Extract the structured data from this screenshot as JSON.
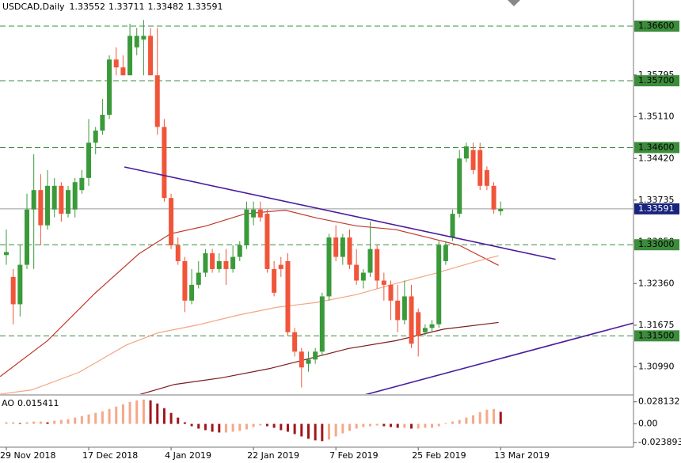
{
  "chart_data": {
    "type": "candlestick",
    "title": "USDCAD,Daily",
    "categories": [
      "29 Nov 2018",
      null,
      null,
      null,
      null,
      null,
      null,
      null,
      null,
      null,
      null,
      null,
      "17 Dec 2018",
      null,
      null,
      null,
      null,
      null,
      null,
      null,
      null,
      null,
      null,
      null,
      "4 Jan 2019",
      null,
      null,
      null,
      null,
      null,
      null,
      null,
      null,
      null,
      null,
      null,
      "22 Jan 2019",
      null,
      null,
      null,
      null,
      null,
      null,
      null,
      null,
      null,
      null,
      null,
      "7 Feb 2019",
      null,
      null,
      null,
      null,
      null,
      null,
      null,
      null,
      null,
      null,
      null,
      "25 Feb 2019",
      null,
      null,
      null,
      null,
      null,
      null,
      null,
      null,
      null,
      null,
      null,
      "13 Mar 2019"
    ],
    "open": [
      1.3283,
      1.3247,
      1.3202,
      1.3267,
      1.3358,
      1.339,
      1.3332,
      1.3358,
      1.3397,
      1.3351,
      1.3358,
      1.339,
      1.341,
      1.3468,
      1.3488,
      1.3514,
      1.3605,
      1.3592,
      1.3579,
      1.3625,
      1.3638,
      1.3644,
      1.3579,
      1.3494,
      1.3377,
      1.3299,
      1.3273,
      1.3208,
      1.3234,
      1.3254,
      1.3286,
      1.326,
      1.3273,
      1.326,
      1.328,
      1.3299,
      1.3345,
      1.3358,
      1.3351,
      1.326,
      1.3267,
      1.3273,
      1.3156,
      1.3124,
      1.3104,
      1.3111,
      1.3124,
      1.3215,
      1.3312,
      1.328,
      1.3312,
      1.3267,
      1.3241,
      1.3254,
      1.3293,
      1.3241,
      1.3234,
      1.3208,
      1.3176,
      1.3215,
      1.3189,
      1.3156,
      1.3163,
      1.3169,
      1.3273,
      1.3312,
      1.3351,
      1.3442,
      1.3456,
      1.3456,
      1.3423,
      1.3397,
      1.33552
    ],
    "high": [
      1.3325,
      1.326,
      1.3299,
      1.3384,
      1.3449,
      1.3416,
      1.3423,
      1.341,
      1.3403,
      1.3397,
      1.341,
      1.3423,
      1.3507,
      1.3494,
      1.354,
      1.3612,
      1.3625,
      1.3612,
      1.3664,
      1.3657,
      1.367,
      1.3657,
      1.3657,
      1.3507,
      1.3384,
      1.3312,
      1.328,
      1.326,
      1.3273,
      1.3293,
      1.3293,
      1.3286,
      1.3293,
      1.3299,
      1.3306,
      1.3371,
      1.3371,
      1.3371,
      1.3358,
      1.3273,
      1.328,
      1.3286,
      1.3163,
      1.313,
      1.3124,
      1.313,
      1.3221,
      1.3318,
      1.3332,
      1.3318,
      1.3325,
      1.3293,
      1.326,
      1.3338,
      1.3299,
      1.3254,
      1.3241,
      1.3234,
      1.3241,
      1.3234,
      1.3195,
      1.3169,
      1.3176,
      1.3306,
      1.3306,
      1.3358,
      1.3456,
      1.3468,
      1.3468,
      1.3468,
      1.3429,
      1.3403,
      1.33711
    ],
    "low": [
      1.3267,
      1.3169,
      1.3182,
      1.326,
      1.326,
      1.3299,
      1.3325,
      1.3345,
      1.3338,
      1.3345,
      1.3345,
      1.3384,
      1.3397,
      1.3449,
      1.3481,
      1.3507,
      1.3579,
      1.3579,
      1.3579,
      1.3612,
      1.3579,
      1.3579,
      1.3481,
      1.3371,
      1.3293,
      1.3267,
      1.3189,
      1.3202,
      1.3228,
      1.3247,
      1.3254,
      1.3254,
      1.3234,
      1.3254,
      1.3273,
      1.3293,
      1.3332,
      1.3338,
      1.3254,
      1.3215,
      1.3247,
      1.315,
      1.3116,
      1.3065,
      1.3091,
      1.3104,
      1.3117,
      1.3208,
      1.3273,
      1.3267,
      1.326,
      1.3234,
      1.3228,
      1.3247,
      1.3228,
      1.3208,
      1.3176,
      1.3156,
      1.3169,
      1.313,
      1.3116,
      1.315,
      1.3156,
      1.3163,
      1.3267,
      1.3306,
      1.3345,
      1.3436,
      1.3416,
      1.339,
      1.339,
      1.3351,
      1.33482
    ],
    "close": [
      1.3288,
      1.3202,
      1.3267,
      1.3358,
      1.339,
      1.3332,
      1.3397,
      1.3397,
      1.3351,
      1.339,
      1.3403,
      1.341,
      1.3468,
      1.3488,
      1.3514,
      1.3605,
      1.3592,
      1.3579,
      1.3644,
      1.3644,
      1.3644,
      1.3579,
      1.3494,
      1.3377,
      1.3299,
      1.3273,
      1.3208,
      1.3234,
      1.3254,
      1.3286,
      1.326,
      1.3273,
      1.326,
      1.328,
      1.3299,
      1.3358,
      1.3358,
      1.3345,
      1.326,
      1.3221,
      1.326,
      1.3156,
      1.3124,
      1.3098,
      1.3111,
      1.3124,
      1.3215,
      1.3312,
      1.328,
      1.3312,
      1.3267,
      1.3241,
      1.3254,
      1.3293,
      1.3241,
      1.3234,
      1.3208,
      1.3176,
      1.3215,
      1.3137,
      1.315,
      1.3163,
      1.3169,
      1.3299,
      1.3299,
      1.3351,
      1.3442,
      1.3462,
      1.3423,
      1.3397,
      1.3397,
      1.3358,
      1.33591
    ],
    "up_color": "#3a9a3a",
    "down_color": "#f0553a",
    "ylim": [
      1.3054,
      1.3703
    ],
    "yticks": [
      1.35795,
      {
        "value": 1.3511,
        "label": "1.35110"
      },
      {
        "value": 1.3442,
        "label": "1.34420"
      },
      1.33735,
      {
        "value": 1.3305,
        "label": "1.33050"
      },
      {
        "value": 1.3236,
        "label": "1.32360"
      },
      1.31675,
      {
        "value": 1.3099,
        "label": "1.30990"
      }
    ],
    "levels": [
      {
        "value": 1.366,
        "label": "1.36600"
      },
      {
        "value": 1.357,
        "label": "1.35700"
      },
      {
        "value": 1.346,
        "label": "1.34600"
      },
      {
        "value": 1.33,
        "label": "1.33000"
      },
      {
        "value": 1.315,
        "label": "1.31500"
      }
    ],
    "level_color": "#3c8c3c",
    "current_price": 1.33591,
    "current_price_color": "#1a237e",
    "overlays": [
      {
        "color": "#c0392b",
        "points": [
          [
            -0.9,
            1.3083
          ],
          [
            6.0,
            1.3142
          ],
          [
            12.9,
            1.322
          ],
          [
            19.3,
            1.3285
          ],
          [
            23.9,
            1.3318
          ],
          [
            29.1,
            1.3331
          ],
          [
            34.8,
            1.3351
          ],
          [
            40.6,
            1.3357
          ],
          [
            45.2,
            1.3344
          ],
          [
            51.0,
            1.3331
          ],
          [
            56.7,
            1.3325
          ],
          [
            61.4,
            1.3312
          ],
          [
            66.0,
            1.3299
          ],
          [
            71.7,
            1.3266
          ]
        ]
      },
      {
        "color": "#f4a582",
        "points": [
          [
            -0.9,
            1.3054
          ],
          [
            3.7,
            1.3061
          ],
          [
            10.6,
            1.309
          ],
          [
            17.5,
            1.3135
          ],
          [
            22.1,
            1.3155
          ],
          [
            27.9,
            1.3168
          ],
          [
            33.7,
            1.3184
          ],
          [
            39.4,
            1.3197
          ],
          [
            45.2,
            1.3205
          ],
          [
            51.0,
            1.3218
          ],
          [
            56.7,
            1.3236
          ],
          [
            62.5,
            1.3253
          ],
          [
            68.3,
            1.3272
          ],
          [
            71.7,
            1.3282
          ]
        ]
      },
      {
        "color": "#7b1b1b",
        "points": [
          [
            18.7,
            1.3051
          ],
          [
            24.5,
            1.307
          ],
          [
            31.4,
            1.3081
          ],
          [
            38.3,
            1.3096
          ],
          [
            42.9,
            1.3109
          ],
          [
            49.8,
            1.3129
          ],
          [
            56.7,
            1.3142
          ],
          [
            63.7,
            1.3161
          ],
          [
            71.7,
            1.3172
          ]
        ]
      }
    ],
    "trendlines": [
      {
        "color": "#4b1c9c",
        "points": [
          [
            17.2,
            1.3428
          ],
          [
            80.0,
            1.3276
          ]
        ]
      },
      {
        "color": "#4b1c9c",
        "points": [
          [
            51.6,
            1.3051
          ],
          [
            91.3,
            1.3171
          ]
        ]
      }
    ],
    "indicator": {
      "name": "AO",
      "values": [
        0.002,
        0.002,
        0.001,
        0.002,
        0.003,
        0.003,
        0.002,
        0.004,
        0.005,
        0.006,
        0.008,
        0.01,
        0.012,
        0.014,
        0.016,
        0.019,
        0.022,
        0.025,
        0.028,
        0.03,
        0.031,
        0.03,
        0.026,
        0.02,
        0.014,
        0.008,
        0.002,
        -0.003,
        -0.006,
        -0.008,
        -0.01,
        -0.011,
        -0.011,
        -0.01,
        -0.009,
        -0.007,
        -0.004,
        -0.002,
        -0.003,
        -0.005,
        -0.008,
        -0.01,
        -0.013,
        -0.016,
        -0.019,
        -0.021,
        -0.022,
        -0.02,
        -0.016,
        -0.012,
        -0.009,
        -0.006,
        -0.004,
        -0.003,
        -0.002,
        -0.003,
        -0.004,
        -0.005,
        -0.005,
        -0.006,
        -0.006,
        -0.005,
        -0.005,
        -0.003,
        0.001,
        0.003,
        0.005,
        0.008,
        0.011,
        0.015,
        0.018,
        0.019,
        0.015411
      ],
      "ylim": [
        -0.0297,
        0.0359
      ],
      "yticks": [
        0.028132,
        {
          "value": 0,
          "label": "0.00"
        },
        -0.023893
      ],
      "up_color": "#f5a88a",
      "down_color": "#a0161b"
    }
  }
}
